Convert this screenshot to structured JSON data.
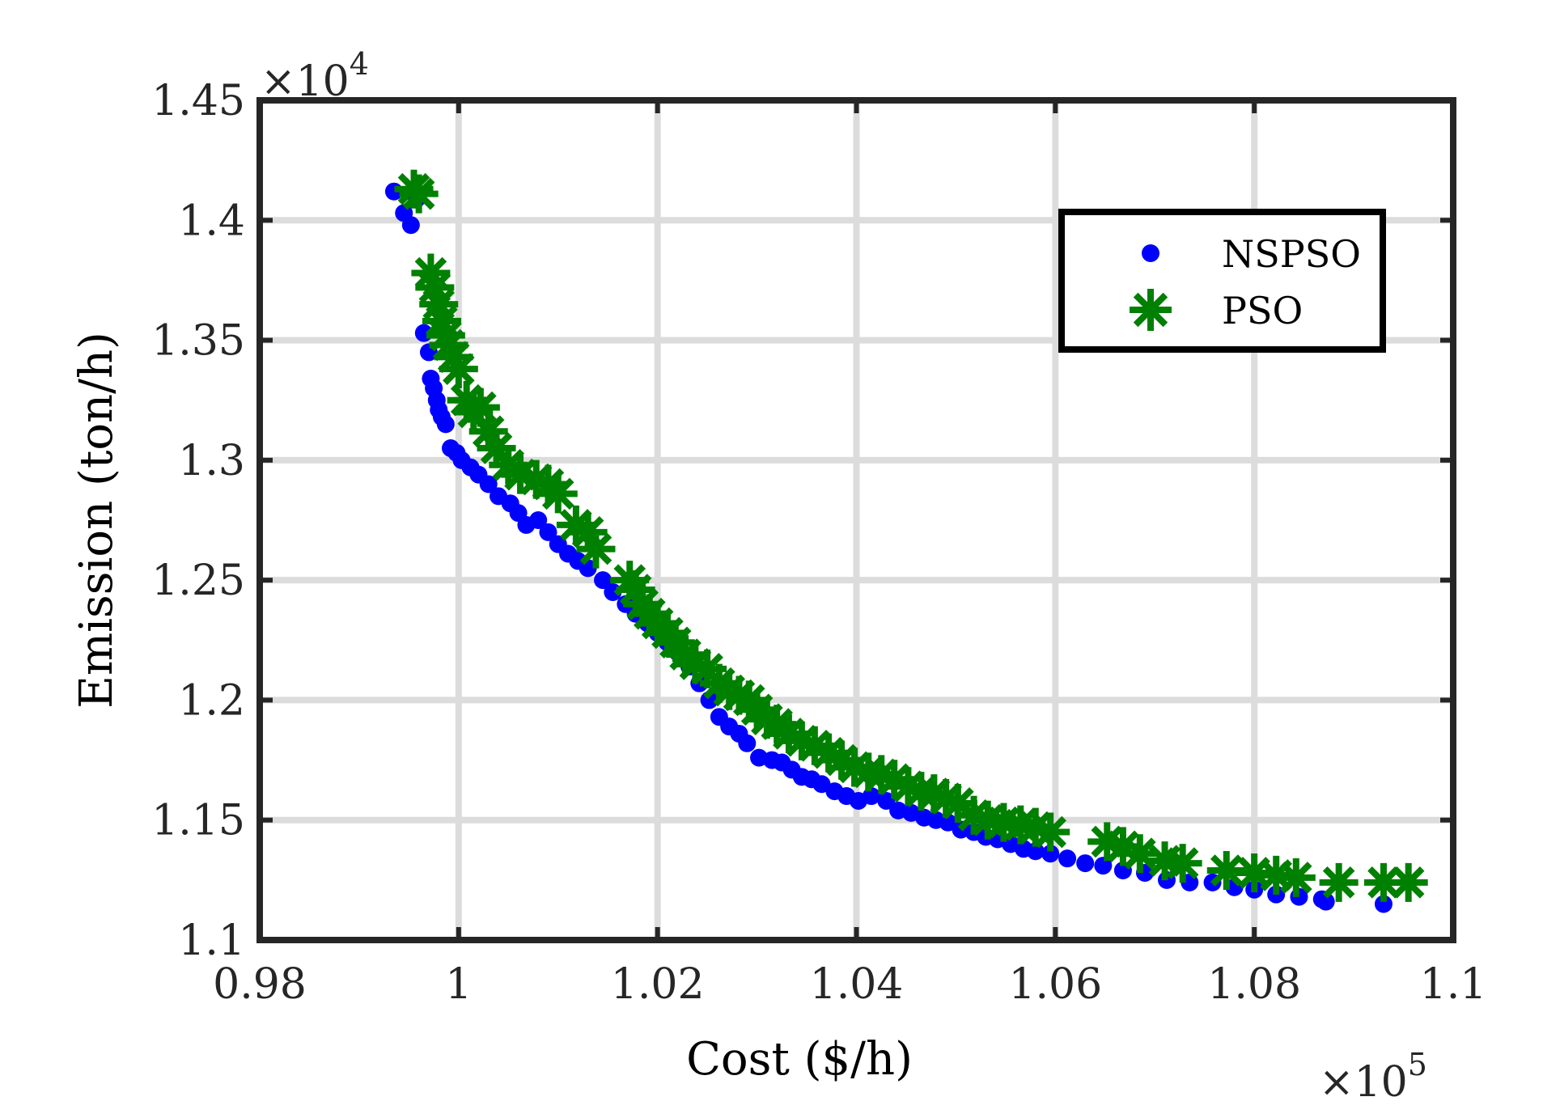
{
  "chart_data": {
    "type": "scatter",
    "title": "",
    "xlabel": "Cost ($/h)",
    "ylabel": "Emission (ton/h)",
    "x_multiplier_label": "×10",
    "x_multiplier_exp": "5",
    "y_multiplier_label": "×10",
    "y_multiplier_exp": "4",
    "xlim": [
      0.98,
      1.1
    ],
    "ylim": [
      1.1,
      1.45
    ],
    "xticks": [
      0.98,
      1.0,
      1.02,
      1.04,
      1.06,
      1.08,
      1.1
    ],
    "xtick_labels": [
      "0.98",
      "1",
      "1.02",
      "1.04",
      "1.06",
      "1.08",
      "1.1"
    ],
    "yticks": [
      1.1,
      1.15,
      1.2,
      1.25,
      1.3,
      1.35,
      1.4,
      1.45
    ],
    "ytick_labels": [
      "1.1",
      "1.15",
      "1.2",
      "1.25",
      "1.3",
      "1.35",
      "1.4",
      "1.45"
    ],
    "grid": true,
    "legend_position": "top-right",
    "series": [
      {
        "name": "NSPSO",
        "marker": "dot",
        "color": "#0000ff",
        "points": [
          [
            0.9935,
            1.412
          ],
          [
            0.9945,
            1.403
          ],
          [
            0.9952,
            1.398
          ],
          [
            0.9958,
            1.409
          ],
          [
            0.9965,
            1.353
          ],
          [
            0.997,
            1.345
          ],
          [
            0.9972,
            1.334
          ],
          [
            0.9975,
            1.33
          ],
          [
            0.9978,
            1.325
          ],
          [
            0.998,
            1.321
          ],
          [
            0.9983,
            1.318
          ],
          [
            0.9987,
            1.315
          ],
          [
            0.9992,
            1.305
          ],
          [
            0.9998,
            1.303
          ],
          [
            1.0003,
            1.3
          ],
          [
            1.0012,
            1.297
          ],
          [
            1.002,
            1.294
          ],
          [
            1.003,
            1.29
          ],
          [
            1.004,
            1.285
          ],
          [
            1.0052,
            1.282
          ],
          [
            1.006,
            1.278
          ],
          [
            1.0068,
            1.273
          ],
          [
            1.008,
            1.275
          ],
          [
            1.009,
            1.27
          ],
          [
            1.01,
            1.265
          ],
          [
            1.011,
            1.261
          ],
          [
            1.012,
            1.258
          ],
          [
            1.013,
            1.255
          ],
          [
            1.0145,
            1.25
          ],
          [
            1.0155,
            1.245
          ],
          [
            1.0168,
            1.24
          ],
          [
            1.0178,
            1.236
          ],
          [
            1.019,
            1.232
          ],
          [
            1.02,
            1.228
          ],
          [
            1.021,
            1.224
          ],
          [
            1.022,
            1.22
          ],
          [
            1.0232,
            1.214
          ],
          [
            1.0242,
            1.207
          ],
          [
            1.0252,
            1.2
          ],
          [
            1.0262,
            1.193
          ],
          [
            1.0272,
            1.189
          ],
          [
            1.0282,
            1.186
          ],
          [
            1.029,
            1.182
          ],
          [
            1.0302,
            1.176
          ],
          [
            1.0315,
            1.175
          ],
          [
            1.0325,
            1.174
          ],
          [
            1.0335,
            1.171
          ],
          [
            1.0345,
            1.168
          ],
          [
            1.0355,
            1.167
          ],
          [
            1.0365,
            1.165
          ],
          [
            1.0378,
            1.162
          ],
          [
            1.039,
            1.16
          ],
          [
            1.0402,
            1.158
          ],
          [
            1.0415,
            1.16
          ],
          [
            1.043,
            1.158
          ],
          [
            1.0442,
            1.154
          ],
          [
            1.0455,
            1.153
          ],
          [
            1.0468,
            1.151
          ],
          [
            1.048,
            1.15
          ],
          [
            1.0492,
            1.149
          ],
          [
            1.0505,
            1.146
          ],
          [
            1.0518,
            1.145
          ],
          [
            1.053,
            1.143
          ],
          [
            1.0542,
            1.142
          ],
          [
            1.0555,
            1.14
          ],
          [
            1.0568,
            1.138
          ],
          [
            1.058,
            1.137
          ],
          [
            1.0595,
            1.136
          ],
          [
            1.0612,
            1.134
          ],
          [
            1.063,
            1.132
          ],
          [
            1.0648,
            1.131
          ],
          [
            1.0668,
            1.129
          ],
          [
            1.069,
            1.128
          ],
          [
            1.0712,
            1.125
          ],
          [
            1.0735,
            1.124
          ],
          [
            1.0758,
            1.124
          ],
          [
            1.078,
            1.122
          ],
          [
            1.08,
            1.121
          ],
          [
            1.0822,
            1.119
          ],
          [
            1.0845,
            1.118
          ],
          [
            1.0868,
            1.117
          ],
          [
            1.0872,
            1.116
          ],
          [
            1.093,
            1.115
          ]
        ]
      },
      {
        "name": "PSO",
        "marker": "asterisk",
        "color": "#008000",
        "points": [
          [
            0.9955,
            1.413
          ],
          [
            0.996,
            1.411
          ],
          [
            0.9972,
            1.378
          ],
          [
            0.9976,
            1.372
          ],
          [
            0.998,
            1.365
          ],
          [
            0.9983,
            1.358
          ],
          [
            0.9987,
            1.352
          ],
          [
            0.999,
            1.348
          ],
          [
            0.9995,
            1.343
          ],
          [
            1.0,
            1.338
          ],
          [
            1.0008,
            1.325
          ],
          [
            1.0015,
            1.32
          ],
          [
            1.0022,
            1.322
          ],
          [
            1.003,
            1.312
          ],
          [
            1.0038,
            1.305
          ],
          [
            1.005,
            1.298
          ],
          [
            1.0062,
            1.294
          ],
          [
            1.0078,
            1.292
          ],
          [
            1.009,
            1.29
          ],
          [
            1.01,
            1.286
          ],
          [
            1.0118,
            1.273
          ],
          [
            1.013,
            1.27
          ],
          [
            1.0138,
            1.263
          ],
          [
            1.0172,
            1.25
          ],
          [
            1.0178,
            1.246
          ],
          [
            1.0185,
            1.24
          ],
          [
            1.0192,
            1.236
          ],
          [
            1.02,
            1.232
          ],
          [
            1.021,
            1.228
          ],
          [
            1.0218,
            1.224
          ],
          [
            1.0228,
            1.219
          ],
          [
            1.0238,
            1.215
          ],
          [
            1.025,
            1.213
          ],
          [
            1.0262,
            1.207
          ],
          [
            1.0272,
            1.204
          ],
          [
            1.0282,
            1.202
          ],
          [
            1.0292,
            1.2
          ],
          [
            1.03,
            1.196
          ],
          [
            1.031,
            1.192
          ],
          [
            1.032,
            1.19
          ],
          [
            1.0332,
            1.186
          ],
          [
            1.0345,
            1.183
          ],
          [
            1.0358,
            1.181
          ],
          [
            1.0372,
            1.178
          ],
          [
            1.0385,
            1.175
          ],
          [
            1.0398,
            1.172
          ],
          [
            1.0412,
            1.17
          ],
          [
            1.0425,
            1.169
          ],
          [
            1.0438,
            1.167
          ],
          [
            1.0452,
            1.164
          ],
          [
            1.0465,
            1.162
          ],
          [
            1.0478,
            1.161
          ],
          [
            1.049,
            1.159
          ],
          [
            1.0502,
            1.157
          ],
          [
            1.0518,
            1.152
          ],
          [
            1.0532,
            1.15
          ],
          [
            1.0548,
            1.149
          ],
          [
            1.0565,
            1.148
          ],
          [
            1.058,
            1.147
          ],
          [
            1.0595,
            1.145
          ],
          [
            1.0652,
            1.141
          ],
          [
            1.0668,
            1.139
          ],
          [
            1.0685,
            1.136
          ],
          [
            1.071,
            1.133
          ],
          [
            1.0728,
            1.132
          ],
          [
            1.0772,
            1.129
          ],
          [
            1.08,
            1.128
          ],
          [
            1.0822,
            1.127
          ],
          [
            1.0842,
            1.126
          ],
          [
            1.0885,
            1.124
          ],
          [
            1.093,
            1.124
          ],
          [
            1.0955,
            1.124
          ]
        ]
      }
    ]
  }
}
